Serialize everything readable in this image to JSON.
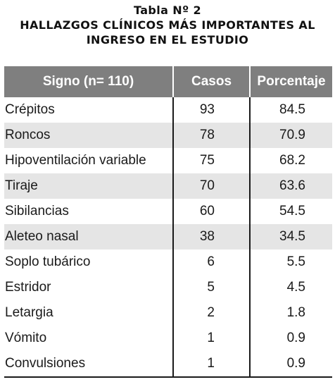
{
  "caption": {
    "line1": "Tabla Nº 2",
    "line2": "HALLAZGOS CLÍNICOS MÁS IMPORTANTES AL",
    "line3": "INGRESO EN EL ESTUDIO"
  },
  "table": {
    "headers": {
      "signo": "Signo (n= 110)",
      "casos": "Casos",
      "porcentaje": "Porcentaje"
    },
    "rows": [
      {
        "signo": "Crépitos",
        "casos": "93",
        "porcentaje": "84.5"
      },
      {
        "signo": "Roncos",
        "casos": "78",
        "porcentaje": "70.9"
      },
      {
        "signo": "Hipoventilación variable",
        "casos": "75",
        "porcentaje": "68.2"
      },
      {
        "signo": "Tiraje",
        "casos": "70",
        "porcentaje": "63.6"
      },
      {
        "signo": "Sibilancias",
        "casos": "60",
        "porcentaje": "54.5"
      },
      {
        "signo": "Aleteo nasal",
        "casos": "38",
        "porcentaje": "34.5"
      },
      {
        "signo": "Soplo tubárico",
        "casos": "6",
        "porcentaje": "5.5"
      },
      {
        "signo": "Estridor",
        "casos": "5",
        "porcentaje": "4.5"
      },
      {
        "signo": "Letargia",
        "casos": "2",
        "porcentaje": "1.8"
      },
      {
        "signo": "Vómito",
        "casos": "1",
        "porcentaje": "0.9"
      },
      {
        "signo": "Convulsiones",
        "casos": "1",
        "porcentaje": "0.9"
      }
    ]
  },
  "colors": {
    "header_bg": "#7f7f7f",
    "header_text": "#ffffff",
    "row_shade": "#e5e5e5",
    "text": "#1a1a1a"
  }
}
